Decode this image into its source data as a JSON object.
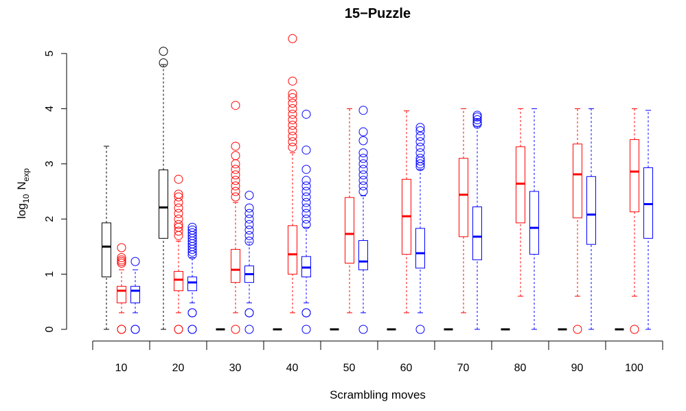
{
  "chart_data": {
    "type": "boxplot",
    "title": "15−Puzzle",
    "xlabel": "Scrambling moves",
    "ylabel": {
      "base": "log",
      "sub": "10",
      "text": "N",
      "text_sub": "exp"
    },
    "ylim": [
      0,
      5
    ],
    "y_ticks": [
      "0",
      "1",
      "2",
      "3",
      "4",
      "5"
    ],
    "categories": [
      "10",
      "20",
      "30",
      "40",
      "50",
      "60",
      "70",
      "80",
      "90",
      "100"
    ],
    "series": [
      {
        "color": "#000000",
        "boxes": [
          {
            "min": 0.0,
            "q1": 0.95,
            "median": 1.5,
            "q3": 1.93,
            "max": 3.32,
            "outliers": []
          },
          {
            "min": 0.0,
            "q1": 1.65,
            "median": 2.21,
            "q3": 2.89,
            "max": 4.8,
            "outliers": [
              4.83,
              5.04
            ]
          },
          {
            "min": 0.0,
            "q1": 0.0,
            "median": 0.0,
            "q3": 0.0,
            "max": 0.0,
            "outliers": []
          },
          {
            "min": 0.0,
            "q1": 0.0,
            "median": 0.0,
            "q3": 0.0,
            "max": 0.0,
            "outliers": []
          },
          {
            "min": 0.0,
            "q1": 0.0,
            "median": 0.0,
            "q3": 0.0,
            "max": 0.0,
            "outliers": []
          },
          {
            "min": 0.0,
            "q1": 0.0,
            "median": 0.0,
            "q3": 0.0,
            "max": 0.0,
            "outliers": []
          },
          {
            "min": 0.0,
            "q1": 0.0,
            "median": 0.0,
            "q3": 0.0,
            "max": 0.0,
            "outliers": []
          },
          {
            "min": 0.0,
            "q1": 0.0,
            "median": 0.0,
            "q3": 0.0,
            "max": 0.0,
            "outliers": []
          },
          {
            "min": 0.0,
            "q1": 0.0,
            "median": 0.0,
            "q3": 0.0,
            "max": 0.0,
            "outliers": []
          },
          {
            "min": 0.0,
            "q1": 0.0,
            "median": 0.0,
            "q3": 0.0,
            "max": 0.0,
            "outliers": []
          }
        ]
      },
      {
        "color": "#ff0000",
        "boxes": [
          {
            "min": 0.3,
            "q1": 0.48,
            "median": 0.7,
            "q3": 0.78,
            "max": 1.08,
            "outliers": [
              1.2,
              1.23,
              1.26,
              1.3,
              1.48,
              0.0,
              0.0
            ]
          },
          {
            "min": 0.3,
            "q1": 0.7,
            "median": 0.9,
            "q3": 1.05,
            "max": 1.6,
            "outliers": [
              1.7,
              1.78,
              1.85,
              1.9,
              2.0,
              2.1,
              2.2,
              2.3,
              2.4,
              2.45,
              2.72,
              0.0,
              0.0
            ]
          },
          {
            "min": 0.3,
            "q1": 0.85,
            "median": 1.08,
            "q3": 1.45,
            "max": 2.3,
            "outliers": [
              2.4,
              2.5,
              2.6,
              2.7,
              2.8,
              2.9,
              3.0,
              3.15,
              3.32,
              4.06,
              0.0
            ]
          },
          {
            "min": 0.3,
            "q1": 1.0,
            "median": 1.36,
            "q3": 1.88,
            "max": 3.2,
            "outliers": [
              3.3,
              3.4,
              3.5,
              3.6,
              3.7,
              3.8,
              3.9,
              4.0,
              4.1,
              4.2,
              4.27,
              4.5,
              5.27
            ]
          },
          {
            "min": 0.3,
            "q1": 1.2,
            "median": 1.73,
            "q3": 2.39,
            "max": 4.0,
            "outliers": []
          },
          {
            "min": 0.3,
            "q1": 1.36,
            "median": 2.05,
            "q3": 2.72,
            "max": 3.96,
            "outliers": []
          },
          {
            "min": 0.3,
            "q1": 1.68,
            "median": 2.44,
            "q3": 3.1,
            "max": 4.0,
            "outliers": []
          },
          {
            "min": 0.6,
            "q1": 1.93,
            "median": 2.64,
            "q3": 3.31,
            "max": 4.0,
            "outliers": []
          },
          {
            "min": 0.6,
            "q1": 2.02,
            "median": 2.81,
            "q3": 3.36,
            "max": 4.0,
            "outliers": [
              0.0
            ]
          },
          {
            "min": 0.6,
            "q1": 2.13,
            "median": 2.86,
            "q3": 3.44,
            "max": 4.0,
            "outliers": [
              0.0
            ]
          }
        ]
      },
      {
        "color": "#0000ff",
        "boxes": [
          {
            "min": 0.3,
            "q1": 0.48,
            "median": 0.7,
            "q3": 0.78,
            "max": 1.08,
            "outliers": [
              1.23,
              0.0,
              0.0
            ]
          },
          {
            "min": 0.48,
            "q1": 0.7,
            "median": 0.85,
            "q3": 0.95,
            "max": 1.3,
            "outliers": [
              1.35,
              1.4,
              1.45,
              1.5,
              1.55,
              1.6,
              1.65,
              1.7,
              1.75,
              1.8,
              1.85,
              0.3,
              0.3,
              0.0,
              0.0
            ]
          },
          {
            "min": 0.48,
            "q1": 0.85,
            "median": 1.0,
            "q3": 1.15,
            "max": 1.58,
            "outliers": [
              1.6,
              1.7,
              1.8,
              1.9,
              2.0,
              2.1,
              2.2,
              2.43,
              0.3,
              0.3,
              0.0
            ]
          },
          {
            "min": 0.48,
            "q1": 0.95,
            "median": 1.12,
            "q3": 1.32,
            "max": 1.85,
            "outliers": [
              1.9,
              2.0,
              2.1,
              2.2,
              2.3,
              2.4,
              2.5,
              2.6,
              2.7,
              2.9,
              3.25,
              3.9,
              0.3,
              0.3,
              0.0
            ]
          },
          {
            "min": 0.3,
            "q1": 1.08,
            "median": 1.23,
            "q3": 1.61,
            "max": 2.42,
            "outliers": [
              2.5,
              2.6,
              2.7,
              2.8,
              2.9,
              3.0,
              3.1,
              3.2,
              3.42,
              3.58,
              3.97,
              0.0
            ]
          },
          {
            "min": 0.3,
            "q1": 1.11,
            "median": 1.38,
            "q3": 1.83,
            "max": 2.9,
            "outliers": [
              2.95,
              3.0,
              3.05,
              3.1,
              3.2,
              3.3,
              3.4,
              3.5,
              3.6,
              3.66,
              0.0
            ]
          },
          {
            "min": 0.0,
            "q1": 1.26,
            "median": 1.68,
            "q3": 2.22,
            "max": 3.68,
            "outliers": [
              3.72,
              3.75,
              3.8,
              3.85,
              3.88
            ]
          },
          {
            "min": 0.0,
            "q1": 1.36,
            "median": 1.84,
            "q3": 2.5,
            "max": 4.0,
            "outliers": []
          },
          {
            "min": 0.0,
            "q1": 1.54,
            "median": 2.08,
            "q3": 2.77,
            "max": 4.0,
            "outliers": []
          },
          {
            "min": 0.0,
            "q1": 1.65,
            "median": 2.27,
            "q3": 2.93,
            "max": 3.97,
            "outliers": []
          }
        ]
      }
    ]
  }
}
